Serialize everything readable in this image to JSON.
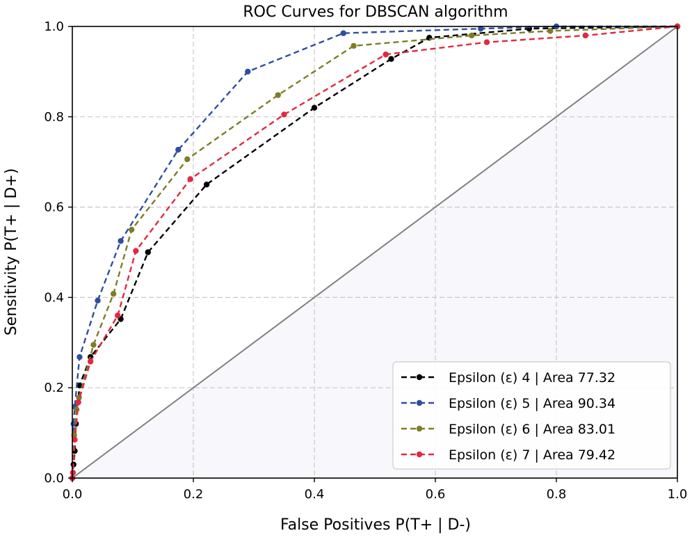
{
  "chart_data": {
    "type": "line",
    "title": "ROC Curves for DBSCAN algorithm",
    "xlabel": "False Positives P(T+ | D-)",
    "ylabel": "Sensitivity P(T+ | D+)",
    "xlim": [
      0.0,
      1.0
    ],
    "ylim": [
      0.0,
      1.0
    ],
    "xticks": [
      "0.0",
      "0.2",
      "0.4",
      "0.6",
      "0.8",
      "1.0"
    ],
    "yticks": [
      "0.0",
      "0.2",
      "0.4",
      "0.6",
      "0.8",
      "1.0"
    ],
    "grid": true,
    "legend_position": "bottom-right",
    "reference_line": {
      "x": [
        0,
        1
      ],
      "y": [
        0,
        1
      ],
      "color": "#808080"
    },
    "series": [
      {
        "name": "Epsilon (ε) 4 | Area 77.32",
        "color": "#000000",
        "x": [
          0.0,
          0.002,
          0.004,
          0.006,
          0.012,
          0.03,
          0.08,
          0.125,
          0.222,
          0.4,
          0.527,
          0.59,
          0.755,
          1.0
        ],
        "y": [
          0.0,
          0.03,
          0.06,
          0.12,
          0.205,
          0.268,
          0.352,
          0.5,
          0.65,
          0.82,
          0.928,
          0.975,
          0.995,
          1.0
        ]
      },
      {
        "name": "Epsilon (ε) 5 | Area 90.34",
        "color": "#2F4EA0",
        "x": [
          0.0,
          0.002,
          0.004,
          0.012,
          0.042,
          0.08,
          0.175,
          0.29,
          0.448,
          0.675,
          0.8,
          1.0
        ],
        "y": [
          0.0,
          0.12,
          0.158,
          0.268,
          0.393,
          0.525,
          0.727,
          0.9,
          0.985,
          0.995,
          1.0,
          1.0
        ]
      },
      {
        "name": "Epsilon (ε) 6 | Area 83.01",
        "color": "#7D7D28",
        "x": [
          0.0,
          0.003,
          0.007,
          0.011,
          0.035,
          0.068,
          0.098,
          0.19,
          0.34,
          0.465,
          0.66,
          0.79,
          1.0
        ],
        "y": [
          0.0,
          0.095,
          0.152,
          0.178,
          0.295,
          0.408,
          0.55,
          0.706,
          0.848,
          0.957,
          0.98,
          0.99,
          1.0
        ]
      },
      {
        "name": "Epsilon (ε) 7 | Area 79.42",
        "color": "#E0293F",
        "x": [
          0.0,
          0.001,
          0.004,
          0.01,
          0.03,
          0.075,
          0.105,
          0.195,
          0.35,
          0.518,
          0.685,
          0.848,
          1.0
        ],
        "y": [
          0.0,
          0.012,
          0.085,
          0.168,
          0.258,
          0.36,
          0.503,
          0.662,
          0.805,
          0.938,
          0.965,
          0.98,
          1.0
        ]
      }
    ]
  }
}
